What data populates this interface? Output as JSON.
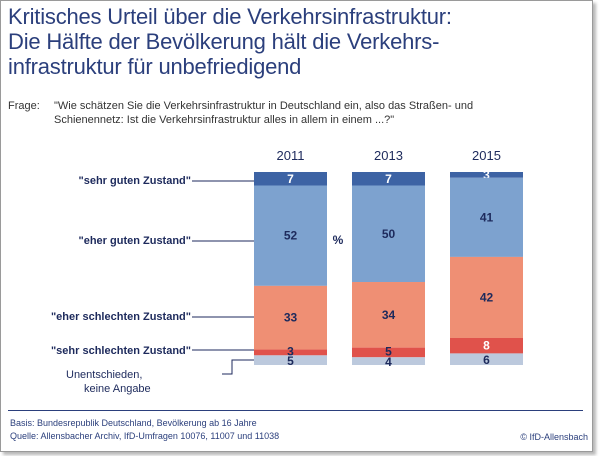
{
  "header": {
    "title": "Kritisches Urteil über die Verkehrsinfrastruktur:\nDie Hälfte der Bevölkerung hält die Verkehrs-\ninfrastruktur für unbefriedigend"
  },
  "question": {
    "label": "Frage:",
    "text": "\"Wie schätzen Sie die Verkehrsinfrastruktur in Deutschland ein, also das Straßen- und Schienennetz: Ist die Verkehrsinfrastruktur alles in allem in einem ...?\""
  },
  "footer": {
    "basis": "Basis: Bundesrepublik Deutschland, Bevölkerung ab 16 Jahre",
    "source": "Quelle: Allensbacher Archiv, IfD-Umfragen 10076, 11007 und 11038",
    "copyright": "© IfD-Allensbach"
  },
  "chart_data": {
    "type": "bar",
    "stacked": true,
    "orientation": "vertical",
    "categories": [
      "2011",
      "2013",
      "2015"
    ],
    "unit_label": "%",
    "series": [
      {
        "name": "\"sehr guten Zustand\"",
        "values": [
          7,
          7,
          3
        ],
        "color": "#3d63a4"
      },
      {
        "name": "\"eher guten Zustand\"",
        "values": [
          52,
          50,
          41
        ],
        "color": "#7da2cf"
      },
      {
        "name": "\"eher schlechten Zustand\"",
        "values": [
          33,
          34,
          42
        ],
        "color": "#ef8f74"
      },
      {
        "name": "\"sehr schlechten Zustand\"",
        "values": [
          3,
          5,
          8
        ],
        "color": "#e0524b"
      },
      {
        "name": "Unentschieden, keine Angabe",
        "values": [
          5,
          4,
          6
        ],
        "color": "#bcc9dd"
      }
    ],
    "legend_placement": "left",
    "grid": false
  }
}
